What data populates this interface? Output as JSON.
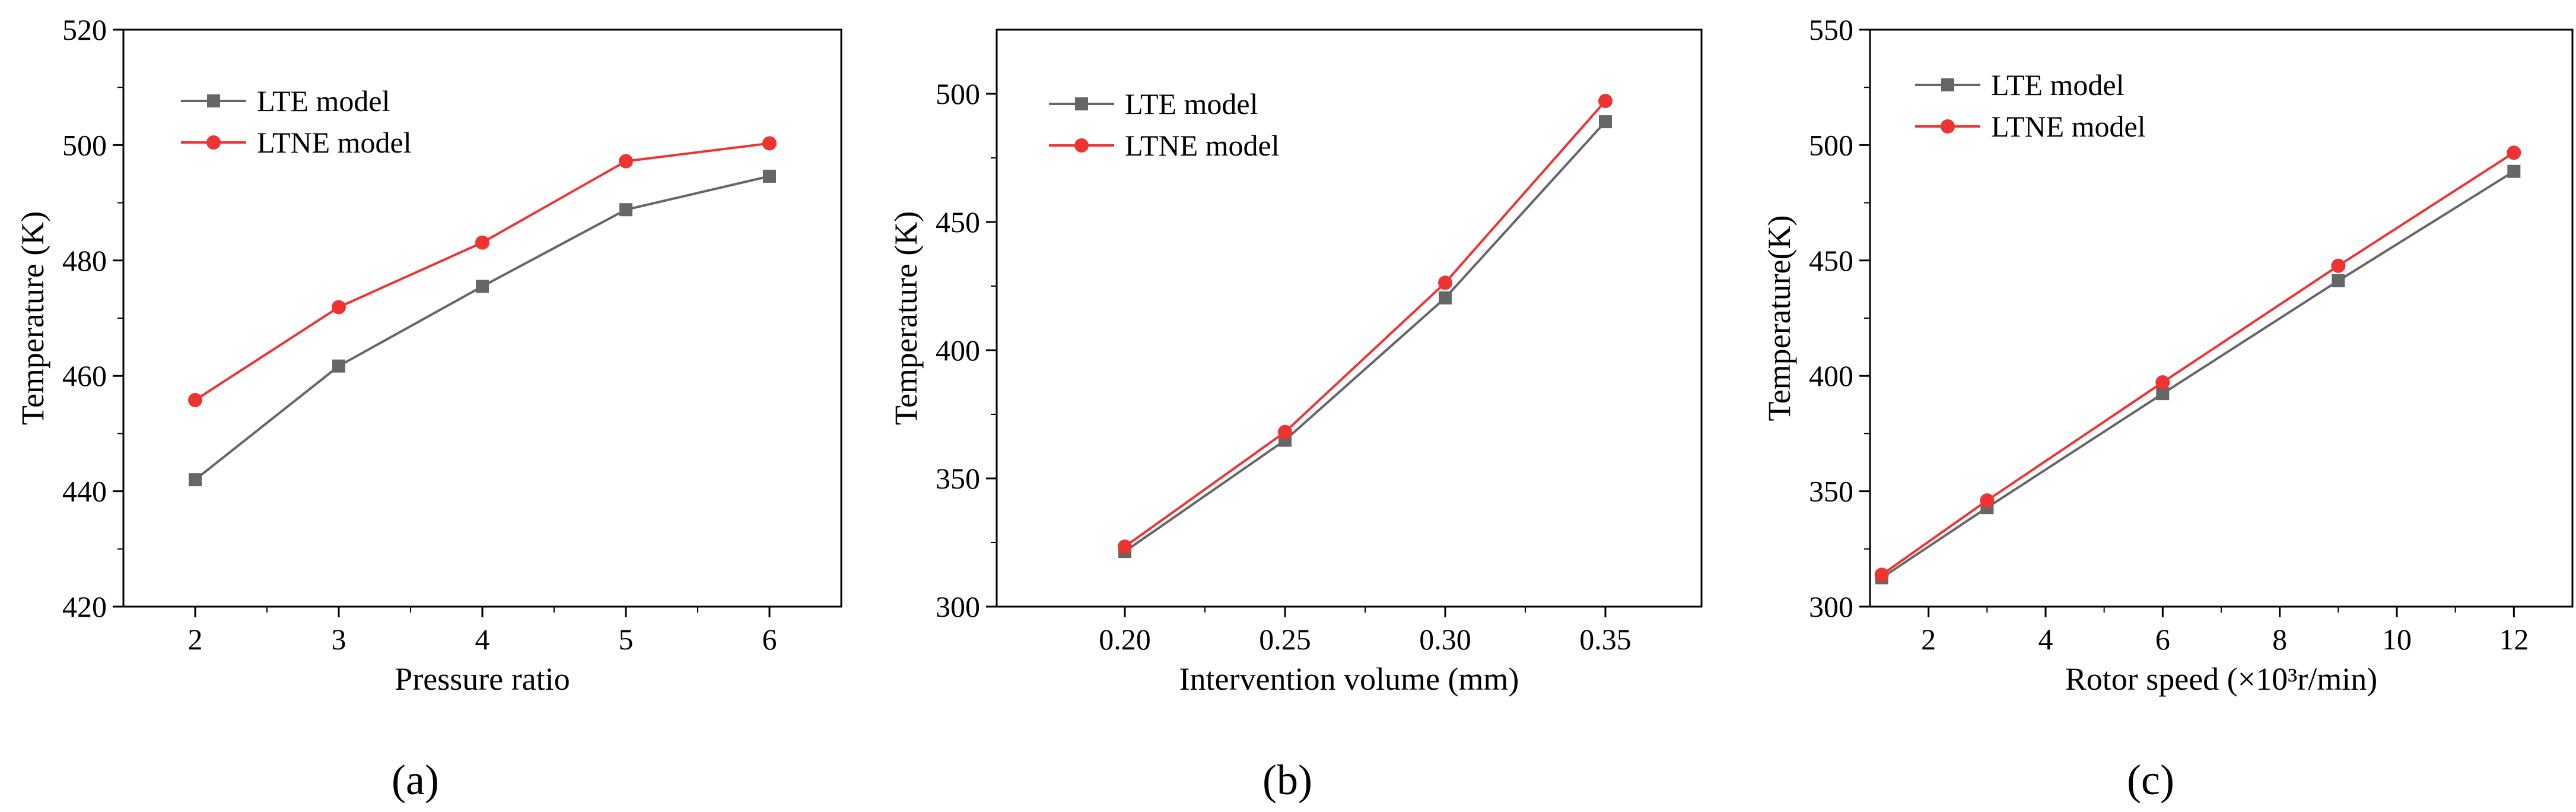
{
  "figure": {
    "colors": {
      "lte": "#666666",
      "ltne": "#ee3333",
      "axis": "#000000"
    }
  },
  "chart_data": [
    {
      "type": "line",
      "panel_label": "(a)",
      "xlabel": "Pressure ratio",
      "ylabel": "Temperature (K)",
      "xlim": [
        1.5,
        6.5
      ],
      "ylim": [
        420,
        520
      ],
      "x_ticks": [
        2,
        3,
        4,
        5,
        6
      ],
      "x_tick_labels": [
        "2",
        "3",
        "4",
        "5",
        "6"
      ],
      "y_ticks": [
        420,
        440,
        460,
        480,
        500,
        520
      ],
      "y_tick_labels": [
        "420",
        "440",
        "460",
        "480",
        "500",
        "520"
      ],
      "legend_position": "top-left",
      "series": [
        {
          "name": "LTE  model",
          "marker": "square",
          "color": "#666666",
          "x": [
            2,
            3,
            4,
            5,
            6
          ],
          "y": [
            442.0,
            461.7,
            475.5,
            488.8,
            494.6
          ]
        },
        {
          "name": "LTNE model",
          "marker": "circle",
          "color": "#ee3333",
          "x": [
            2,
            3,
            4,
            5,
            6
          ],
          "y": [
            455.8,
            471.9,
            483.1,
            497.2,
            500.3
          ]
        }
      ]
    },
    {
      "type": "line",
      "panel_label": "(b)",
      "xlabel": "Intervention volume (mm)",
      "ylabel": "Temperature (K)",
      "xlim": [
        0.16,
        0.38
      ],
      "ylim": [
        300,
        525
      ],
      "x_ticks": [
        0.2,
        0.25,
        0.3,
        0.35
      ],
      "x_tick_labels": [
        "0.20",
        "0.25",
        "0.30",
        "0.35"
      ],
      "y_ticks": [
        300,
        350,
        400,
        450,
        500
      ],
      "y_tick_labels": [
        "300",
        "350",
        "400",
        "450",
        "500"
      ],
      "legend_position": "top-left",
      "series": [
        {
          "name": "LTE  model",
          "marker": "square",
          "color": "#666666",
          "x": [
            0.2,
            0.25,
            0.3,
            0.35
          ],
          "y": [
            321.5,
            364.9,
            420.4,
            489.1
          ]
        },
        {
          "name": "LTNE  model",
          "marker": "circle",
          "color": "#ee3333",
          "x": [
            0.2,
            0.25,
            0.3,
            0.35
          ],
          "y": [
            323.4,
            368.1,
            426.3,
            497.2
          ]
        }
      ]
    },
    {
      "type": "line",
      "panel_label": "(c)",
      "xlabel": "Rotor speed (×10³r/min)",
      "ylabel": "Temperature(K)",
      "xlim": [
        1,
        13
      ],
      "ylim": [
        300,
        550
      ],
      "x_ticks": [
        2,
        4,
        6,
        8,
        10,
        12
      ],
      "x_tick_labels": [
        "2",
        "4",
        "6",
        "8",
        "10",
        "12"
      ],
      "y_ticks": [
        300,
        350,
        400,
        450,
        500,
        550
      ],
      "y_tick_labels": [
        "300",
        "350",
        "400",
        "450",
        "500",
        "550"
      ],
      "legend_position": "top-left",
      "series": [
        {
          "name": "LTE  model",
          "marker": "square",
          "color": "#666666",
          "x": [
            1.2,
            3,
            6,
            9,
            12
          ],
          "y": [
            312.5,
            342.9,
            392.3,
            441.2,
            488.6
          ]
        },
        {
          "name": "LTNE model",
          "marker": "circle",
          "color": "#ee3333",
          "x": [
            1.2,
            3,
            6,
            9,
            12
          ],
          "y": [
            313.8,
            346.0,
            397.2,
            447.7,
            496.7
          ]
        }
      ]
    }
  ]
}
